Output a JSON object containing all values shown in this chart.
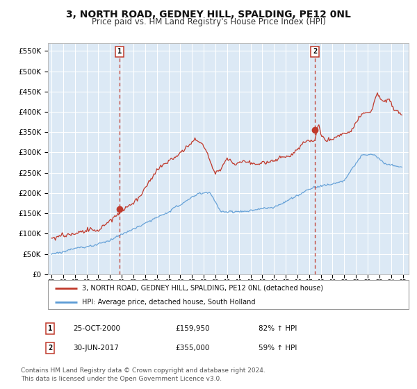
{
  "title": "3, NORTH ROAD, GEDNEY HILL, SPALDING, PE12 0NL",
  "subtitle": "Price paid vs. HM Land Registry's House Price Index (HPI)",
  "title_fontsize": 10,
  "subtitle_fontsize": 8.5,
  "background_color": "#ffffff",
  "plot_bg_color": "#dce9f5",
  "grid_color": "#ffffff",
  "ylabel_ticks": [
    "£0",
    "£50K",
    "£100K",
    "£150K",
    "£200K",
    "£250K",
    "£300K",
    "£350K",
    "£400K",
    "£450K",
    "£500K",
    "£550K"
  ],
  "ytick_values": [
    0,
    50000,
    100000,
    150000,
    200000,
    250000,
    300000,
    350000,
    400000,
    450000,
    500000,
    550000
  ],
  "ylim": [
    0,
    570000
  ],
  "xlim_start": 1994.7,
  "xlim_end": 2025.5,
  "red_line_color": "#c0392b",
  "blue_line_color": "#5b9bd5",
  "marker1_date": 2000.81,
  "marker1_value": 159950,
  "marker2_date": 2017.5,
  "marker2_value": 355000,
  "vline1_x": 2000.81,
  "vline2_x": 2017.5,
  "legend_line1": "3, NORTH ROAD, GEDNEY HILL, SPALDING, PE12 0NL (detached house)",
  "legend_line2": "HPI: Average price, detached house, South Holland",
  "table_row1_num": "1",
  "table_row1_date": "25-OCT-2000",
  "table_row1_price": "£159,950",
  "table_row1_hpi": "82% ↑ HPI",
  "table_row2_num": "2",
  "table_row2_date": "30-JUN-2017",
  "table_row2_price": "£355,000",
  "table_row2_hpi": "59% ↑ HPI",
  "footnote": "Contains HM Land Registry data © Crown copyright and database right 2024.\nThis data is licensed under the Open Government Licence v3.0.",
  "footnote_fontsize": 6.5
}
